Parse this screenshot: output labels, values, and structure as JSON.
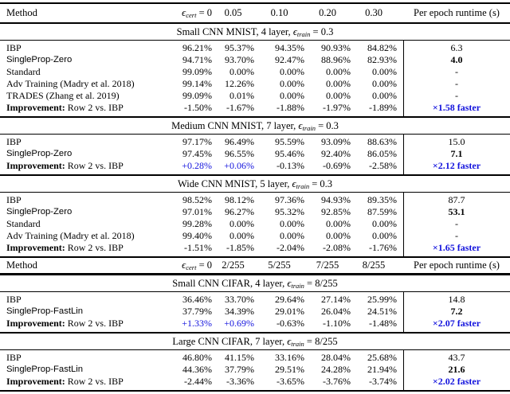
{
  "page": {
    "background": "#ffffff",
    "text_color": "#000000",
    "accent_blue": "#1212dd"
  },
  "table": {
    "header_mnist": {
      "method": "Method",
      "eps_symbol": "ϵ",
      "eps_sub": "cert",
      "eps_rest": " = 0",
      "ticks": [
        "0.05",
        "0.10",
        "0.20",
        "0.30"
      ],
      "runtime": "Per epoch runtime (s)"
    },
    "header_cifar": {
      "method": "Method",
      "eps_symbol": "ϵ",
      "eps_sub": "cert",
      "eps_rest": " = 0",
      "ticks": [
        "2/255",
        "5/255",
        "7/255",
        "8/255"
      ],
      "runtime": "Per epoch runtime (s)"
    },
    "sections": [
      {
        "title_prefix": "Small CNN MNIST, 4 layer, ",
        "eps_symbol": "ϵ",
        "eps_sub": "train",
        "eps_rest": " = 0.3",
        "rows": [
          {
            "type": "method",
            "label": "IBP",
            "font": "serif",
            "values": [
              "96.21%",
              "95.37%",
              "94.35%",
              "90.93%",
              "84.82%"
            ],
            "runtime": "6.3",
            "runtime_bold": false
          },
          {
            "type": "method",
            "label": "SingleProp-Zero",
            "font": "sans",
            "values": [
              "94.71%",
              "93.70%",
              "92.47%",
              "88.96%",
              "82.93%"
            ],
            "runtime": "4.0",
            "runtime_bold": true
          },
          {
            "type": "method",
            "label": "Standard",
            "font": "serif",
            "values": [
              "99.09%",
              "0.00%",
              "0.00%",
              "0.00%",
              "0.00%"
            ],
            "runtime": "-",
            "runtime_bold": false
          },
          {
            "type": "method",
            "label": "Adv Training (Madry et al. 2018)",
            "font": "serif",
            "values": [
              "99.14%",
              "12.26%",
              "0.00%",
              "0.00%",
              "0.00%"
            ],
            "runtime": "-",
            "runtime_bold": false
          },
          {
            "type": "method",
            "label": "TRADES (Zhang et al. 2019)",
            "font": "serif",
            "values": [
              "99.09%",
              "0.01%",
              "0.00%",
              "0.00%",
              "0.00%"
            ],
            "runtime": "-",
            "runtime_bold": false
          },
          {
            "type": "improvement",
            "label_bold": "Improvement:",
            "label_rest": " Row 2 vs. IBP",
            "values": [
              "-1.50%",
              "-1.67%",
              "-1.88%",
              "-1.97%",
              "-1.89%"
            ],
            "runtime": "×1.58 faster"
          }
        ]
      },
      {
        "title_prefix": "Medium CNN MNIST, 7 layer, ",
        "eps_symbol": "ϵ",
        "eps_sub": "train",
        "eps_rest": " = 0.3",
        "rows": [
          {
            "type": "method",
            "label": "IBP",
            "font": "serif",
            "values": [
              "97.17%",
              "96.49%",
              "95.59%",
              "93.09%",
              "88.63%"
            ],
            "runtime": "15.0",
            "runtime_bold": false
          },
          {
            "type": "method",
            "label": "SingleProp-Zero",
            "font": "sans",
            "values": [
              "97.45%",
              "96.55%",
              "95.46%",
              "92.40%",
              "86.05%"
            ],
            "runtime": "7.1",
            "runtime_bold": true
          },
          {
            "type": "improvement",
            "label_bold": "Improvement:",
            "label_rest": " Row 2 vs. IBP",
            "values": [
              "+0.28%",
              "+0.06%",
              "-0.13%",
              "-0.69%",
              "-2.58%"
            ],
            "runtime": "×2.12 faster"
          }
        ]
      },
      {
        "title_prefix": "Wide CNN MNIST, 5 layer, ",
        "eps_symbol": "ϵ",
        "eps_sub": "train",
        "eps_rest": " = 0.3",
        "rows": [
          {
            "type": "method",
            "label": "IBP",
            "font": "serif",
            "values": [
              "98.52%",
              "98.12%",
              "97.36%",
              "94.93%",
              "89.35%"
            ],
            "runtime": "87.7",
            "runtime_bold": false
          },
          {
            "type": "method",
            "label": "SingleProp-Zero",
            "font": "sans",
            "values": [
              "97.01%",
              "96.27%",
              "95.32%",
              "92.85%",
              "87.59%"
            ],
            "runtime": "53.1",
            "runtime_bold": true
          },
          {
            "type": "method",
            "label": "Standard",
            "font": "serif",
            "values": [
              "99.28%",
              "0.00%",
              "0.00%",
              "0.00%",
              "0.00%"
            ],
            "runtime": "-",
            "runtime_bold": false
          },
          {
            "type": "method",
            "label": "Adv Training (Madry et al. 2018)",
            "font": "serif",
            "values": [
              "99.40%",
              "0.00%",
              "0.00%",
              "0.00%",
              "0.00%"
            ],
            "runtime": "-",
            "runtime_bold": false
          },
          {
            "type": "improvement",
            "label_bold": "Improvement:",
            "label_rest": " Row 2 vs. IBP",
            "values": [
              "-1.51%",
              "-1.85%",
              "-2.04%",
              "-2.08%",
              "-1.76%"
            ],
            "runtime": "×1.65 faster"
          }
        ]
      },
      {
        "title_prefix": "Small CNN CIFAR, 4 layer, ",
        "eps_symbol": "ϵ",
        "eps_sub": "train",
        "eps_rest": " = 8/255",
        "rows": [
          {
            "type": "method",
            "label": "IBP",
            "font": "serif",
            "values": [
              "36.46%",
              "33.70%",
              "29.64%",
              "27.14%",
              "25.99%"
            ],
            "runtime": "14.8",
            "runtime_bold": false
          },
          {
            "type": "method",
            "label": "SingleProp-FastLin",
            "font": "sans",
            "values": [
              "37.79%",
              "34.39%",
              "29.01%",
              "26.04%",
              "24.51%"
            ],
            "runtime": "7.2",
            "runtime_bold": true
          },
          {
            "type": "improvement",
            "label_bold": "Improvement:",
            "label_rest": " Row 2 vs. IBP",
            "values": [
              "+1.33%",
              "+0.69%",
              "-0.63%",
              "-1.10%",
              "-1.48%"
            ],
            "runtime": "×2.07 faster"
          }
        ]
      },
      {
        "title_prefix": "Large CNN CIFAR, 7 layer, ",
        "eps_symbol": "ϵ",
        "eps_sub": "train",
        "eps_rest": " = 8/255",
        "rows": [
          {
            "type": "method",
            "label": "IBP",
            "font": "serif",
            "values": [
              "46.80%",
              "41.15%",
              "33.16%",
              "28.04%",
              "25.68%"
            ],
            "runtime": "43.7",
            "runtime_bold": false
          },
          {
            "type": "method",
            "label": "SingleProp-FastLin",
            "font": "sans",
            "values": [
              "44.36%",
              "37.79%",
              "29.51%",
              "24.28%",
              "21.94%"
            ],
            "runtime": "21.6",
            "runtime_bold": true
          },
          {
            "type": "improvement",
            "label_bold": "Improvement:",
            "label_rest": " Row 2 vs. IBP",
            "values": [
              "-2.44%",
              "-3.36%",
              "-3.65%",
              "-3.76%",
              "-3.74%"
            ],
            "runtime": "×2.02 faster"
          }
        ]
      }
    ]
  }
}
